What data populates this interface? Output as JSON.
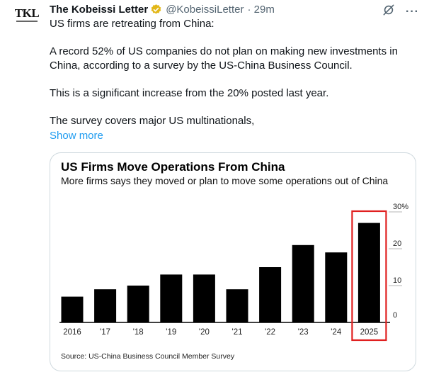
{
  "author": {
    "avatar_text": "TKL",
    "name": "The Kobeissi Letter",
    "handle": "@KobeissiLetter",
    "time": "· 29m"
  },
  "icons": {
    "verified": "verified-badge-icon",
    "grok": "grok-icon",
    "more": "more-icon"
  },
  "colors": {
    "verified": "#e2b719",
    "link": "#1d9bf0",
    "highlight": "#e02020",
    "bar": "#000000"
  },
  "tweet": {
    "paragraphs": [
      "US firms are retreating from China:",
      "A record 52% of US companies do not plan on making new investments in China, according to a survey by the US-China Business Council.",
      "This is a significant increase from the 20% posted last year.",
      "The survey covers major US multinationals,"
    ],
    "show_more": "Show more"
  },
  "chart_data": {
    "type": "bar",
    "title": "US Firms Move Operations From China",
    "subtitle": "More firms says they moved or plan to move some operations out of China",
    "categories": [
      "2016",
      "'17",
      "'18",
      "'19",
      "'20",
      "'21",
      "'22",
      "'23",
      "'24",
      "2025"
    ],
    "values": [
      7,
      9,
      10,
      13,
      13,
      9,
      15,
      21,
      19,
      27
    ],
    "yticks": [
      "30%",
      "20",
      "10",
      "0"
    ],
    "ytick_values": [
      30,
      20,
      10,
      0
    ],
    "ylim": [
      0,
      30
    ],
    "highlighted_category": "2025",
    "source": "Source: US-China Business Council Member Survey"
  }
}
